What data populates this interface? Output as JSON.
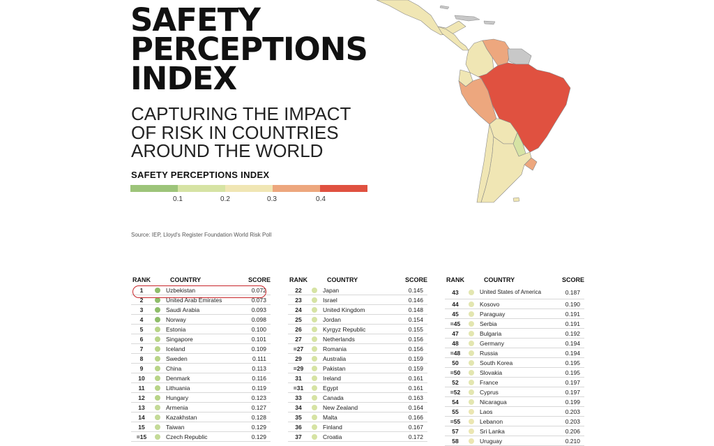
{
  "title_lines": [
    "SAFETY",
    "PERCEPTIONS",
    "INDEX"
  ],
  "subtitle_lines": [
    "CAPTURING THE IMPACT",
    "OF RISK IN COUNTRIES",
    "AROUND THE WORLD"
  ],
  "legend": {
    "title": "SAFETY PERCEPTIONS INDEX",
    "colors": [
      "#9dc47a",
      "#d6e3a4",
      "#f0e6b4",
      "#eda77e",
      "#e05140"
    ],
    "ticks": [
      "0.1",
      "0.2",
      "0.3",
      "0.4"
    ]
  },
  "source": "Source: IEP, Lloyd's Register Foundation World Risk Poll",
  "map": {
    "fills": {
      "brazil": "#e05140",
      "peru": "#eda77e",
      "venezuela": "#eda77e",
      "colombia": "#f0e6b4",
      "ecuador": "#f0e6b4",
      "bolivia": "#f0e6b4",
      "argentina": "#f0e6b4",
      "chile": "#f0e6b4",
      "paraguay": "#d6e3a4",
      "uruguay": "#eda77e",
      "guianas": "#c8c8c8",
      "mexico": "#f0e6b4",
      "central_america": "#f0e6b4",
      "caribbean": "#c8c8c8"
    }
  },
  "table": {
    "headers": {
      "rank": "RANK",
      "country": "COUNTRY",
      "score": "SCORE"
    },
    "columns": [
      [
        {
          "rank": "1",
          "country": "Uzbekistan",
          "score": "0.072",
          "color": "#8fbd6a"
        },
        {
          "rank": "2",
          "country": "United Arab Emirates",
          "score": "0.073",
          "color": "#8fbd6a"
        },
        {
          "rank": "3",
          "country": "Saudi Arabia",
          "score": "0.093",
          "color": "#8fbd6a"
        },
        {
          "rank": "4",
          "country": "Norway",
          "score": "0.098",
          "color": "#8fbd6a"
        },
        {
          "rank": "5",
          "country": "Estonia",
          "score": "0.100",
          "color": "#b8d488"
        },
        {
          "rank": "6",
          "country": "Singapore",
          "score": "0.101",
          "color": "#b8d488"
        },
        {
          "rank": "7",
          "country": "Iceland",
          "score": "0.109",
          "color": "#b8d488"
        },
        {
          "rank": "8",
          "country": "Sweden",
          "score": "0.111",
          "color": "#b8d488"
        },
        {
          "rank": "9",
          "country": "China",
          "score": "0.113",
          "color": "#b8d488"
        },
        {
          "rank": "10",
          "country": "Denmark",
          "score": "0.116",
          "color": "#b8d488"
        },
        {
          "rank": "11",
          "country": "Lithuania",
          "score": "0.119",
          "color": "#b8d488"
        },
        {
          "rank": "12",
          "country": "Hungary",
          "score": "0.123",
          "color": "#b8d488"
        },
        {
          "rank": "13",
          "country": "Armenia",
          "score": "0.127",
          "color": "#c4da98"
        },
        {
          "rank": "14",
          "country": "Kazakhstan",
          "score": "0.128",
          "color": "#c4da98"
        },
        {
          "rank": "15",
          "country": "Taiwan",
          "score": "0.129",
          "color": "#c4da98"
        },
        {
          "rank": "=15",
          "country": "Czech Republic",
          "score": "0.129",
          "color": "#c4da98"
        }
      ],
      [
        {
          "rank": "22",
          "country": "Japan",
          "score": "0.145",
          "color": "#d6e3a4"
        },
        {
          "rank": "23",
          "country": "Israel",
          "score": "0.146",
          "color": "#d6e3a4"
        },
        {
          "rank": "24",
          "country": "United Kingdom",
          "score": "0.148",
          "color": "#d6e3a4"
        },
        {
          "rank": "25",
          "country": "Jordan",
          "score": "0.154",
          "color": "#d6e3a4"
        },
        {
          "rank": "26",
          "country": "Kyrgyz Republic",
          "score": "0.155",
          "color": "#d6e3a4"
        },
        {
          "rank": "27",
          "country": "Netherlands",
          "score": "0.156",
          "color": "#d6e3a4"
        },
        {
          "rank": "=27",
          "country": "Romania",
          "score": "0.156",
          "color": "#d6e3a4"
        },
        {
          "rank": "29",
          "country": "Australia",
          "score": "0.159",
          "color": "#d6e3a4"
        },
        {
          "rank": "=29",
          "country": "Pakistan",
          "score": "0.159",
          "color": "#d6e3a4"
        },
        {
          "rank": "31",
          "country": "Ireland",
          "score": "0.161",
          "color": "#d6e3a4"
        },
        {
          "rank": "=31",
          "country": "Egypt",
          "score": "0.161",
          "color": "#d6e3a4"
        },
        {
          "rank": "33",
          "country": "Canada",
          "score": "0.163",
          "color": "#d6e3a4"
        },
        {
          "rank": "34",
          "country": "New Zealand",
          "score": "0.164",
          "color": "#d6e3a4"
        },
        {
          "rank": "35",
          "country": "Malta",
          "score": "0.166",
          "color": "#d6e3a4"
        },
        {
          "rank": "36",
          "country": "Finland",
          "score": "0.167",
          "color": "#d6e3a4"
        },
        {
          "rank": "37",
          "country": "Croatia",
          "score": "0.172",
          "color": "#d6e3a4"
        }
      ],
      [
        {
          "rank": "43",
          "country": "United States of America",
          "score": "0.187",
          "color": "#e3e6b0"
        },
        {
          "rank": "44",
          "country": "Kosovo",
          "score": "0.190",
          "color": "#e3e6b0"
        },
        {
          "rank": "45",
          "country": "Paraguay",
          "score": "0.191",
          "color": "#e3e6b0"
        },
        {
          "rank": "=45",
          "country": "Serbia",
          "score": "0.191",
          "color": "#e3e6b0"
        },
        {
          "rank": "47",
          "country": "Bulgaria",
          "score": "0.192",
          "color": "#e3e6b0"
        },
        {
          "rank": "48",
          "country": "Germany",
          "score": "0.194",
          "color": "#e3e6b0"
        },
        {
          "rank": "=48",
          "country": "Russia",
          "score": "0.194",
          "color": "#e3e6b0"
        },
        {
          "rank": "50",
          "country": "South Korea",
          "score": "0.195",
          "color": "#e3e6b0"
        },
        {
          "rank": "=50",
          "country": "Slovakia",
          "score": "0.195",
          "color": "#e3e6b0"
        },
        {
          "rank": "52",
          "country": "France",
          "score": "0.197",
          "color": "#e3e6b0"
        },
        {
          "rank": "=52",
          "country": "Cyprus",
          "score": "0.197",
          "color": "#e3e6b0"
        },
        {
          "rank": "54",
          "country": "Nicaragua",
          "score": "0.199",
          "color": "#e3e6b0"
        },
        {
          "rank": "55",
          "country": "Laos",
          "score": "0.203",
          "color": "#ebe6b2"
        },
        {
          "rank": "=55",
          "country": "Lebanon",
          "score": "0.203",
          "color": "#ebe6b2"
        },
        {
          "rank": "57",
          "country": "Sri Lanka",
          "score": "0.206",
          "color": "#ebe6b2"
        },
        {
          "rank": "58",
          "country": "Uruguay",
          "score": "0.210",
          "color": "#ebe6b2"
        }
      ]
    ]
  }
}
